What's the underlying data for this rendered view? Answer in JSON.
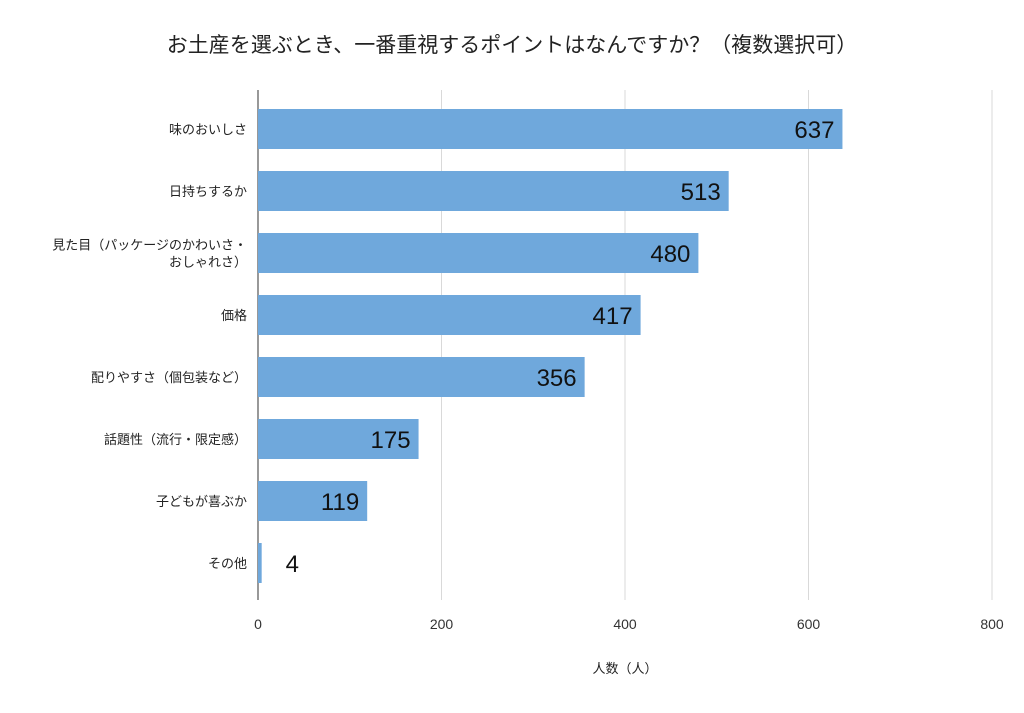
{
  "chart_data": {
    "type": "bar",
    "orientation": "horizontal",
    "title": "お土産を選ぶとき、一番重視するポイントはなんですか？（複数選択可）",
    "xlabel": "人数（人）",
    "ylabel": "",
    "categories": [
      [
        "味のおいしさ"
      ],
      [
        "日持ちするか"
      ],
      [
        "見た目（パッケージのかわいさ・",
        "おしゃれさ）"
      ],
      [
        "価格"
      ],
      [
        "配りやすさ（個包装など）"
      ],
      [
        "話題性（流行・限定感）"
      ],
      [
        "子どもが喜ぶか"
      ],
      [
        "その他"
      ]
    ],
    "values": [
      637,
      513,
      480,
      417,
      356,
      175,
      119,
      4
    ],
    "xlim": [
      0,
      800
    ],
    "ticks": [
      0,
      200,
      400,
      600,
      800
    ],
    "grid": true,
    "legend": "none",
    "bar_color": "#6fa8dc",
    "grid_color": "#d9d9d9"
  }
}
